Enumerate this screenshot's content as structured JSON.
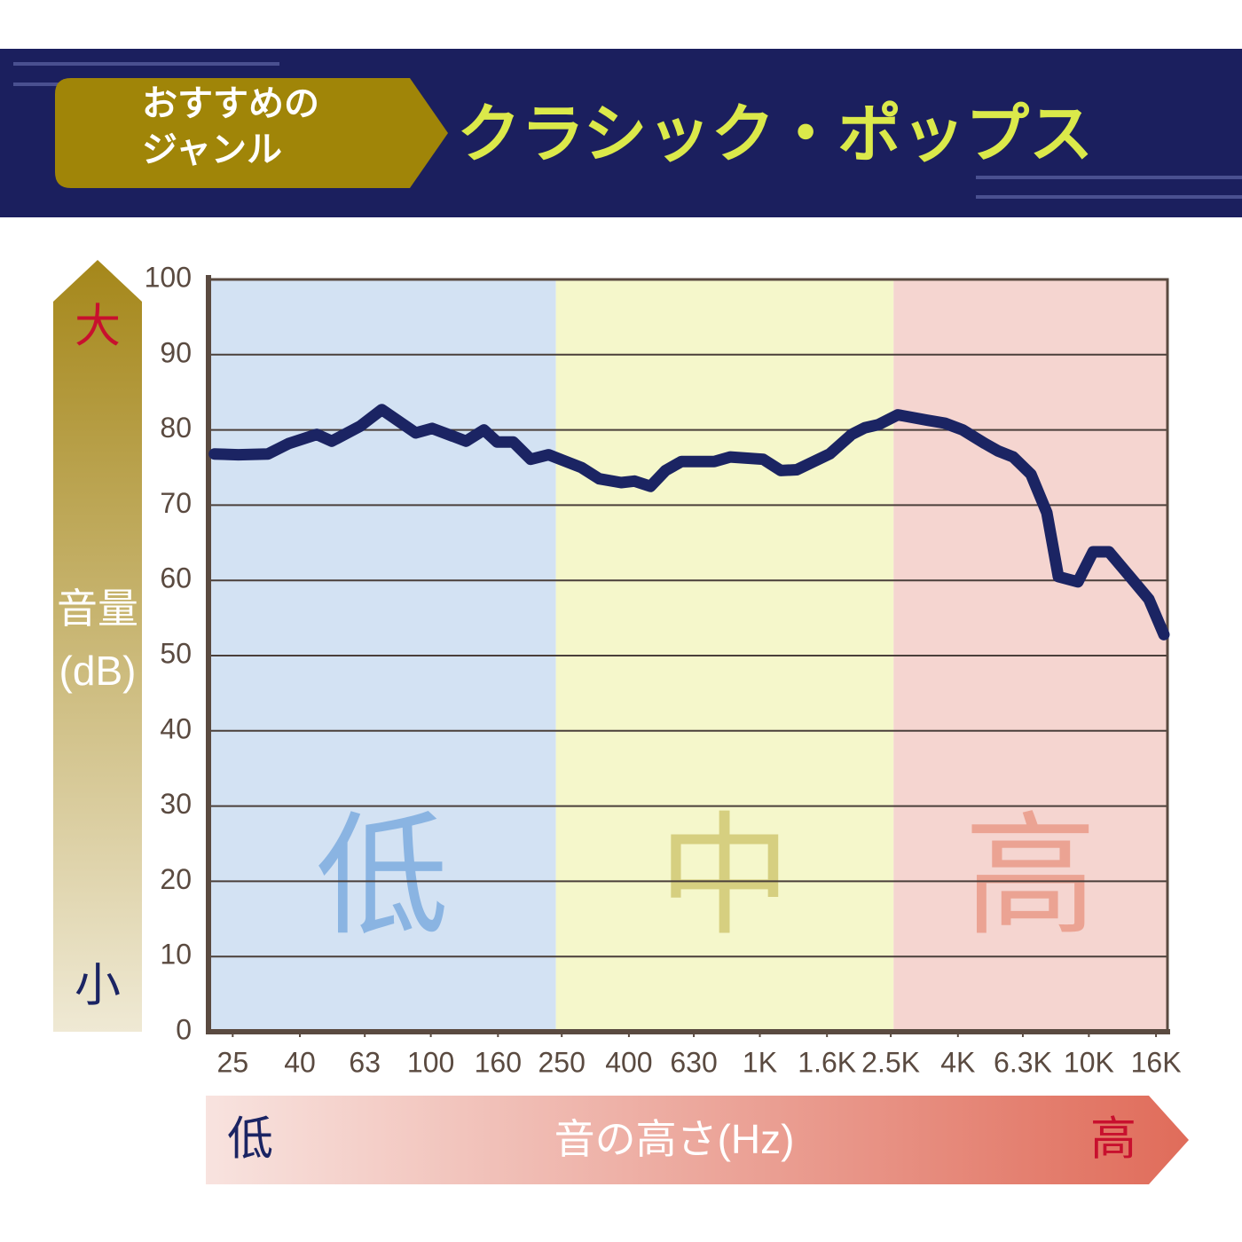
{
  "header": {
    "label_lines": [
      "おすすめの",
      "ジャンル"
    ],
    "genre": "クラシック・ポップス"
  },
  "chart_data": {
    "type": "line",
    "y_label_lines": [
      "音量",
      "(dB)"
    ],
    "y_high": "大",
    "y_low": "小",
    "x_label": "音の高さ(Hz)",
    "x_low": "低",
    "x_high": "高",
    "log_x": true,
    "grid": true,
    "xlim": [
      21.1,
      17337
    ],
    "ylim": [
      0,
      100
    ],
    "xticks": [
      25,
      40,
      63,
      100,
      160,
      250,
      400,
      630,
      {
        "value": 1000,
        "label": "1K"
      },
      {
        "value": 1600,
        "label": "1.6K"
      },
      {
        "value": 2500,
        "label": "2.5K"
      },
      {
        "value": 4000,
        "label": "4K"
      },
      {
        "value": 6300,
        "label": "6.3K"
      },
      {
        "value": 10000,
        "label": "10K"
      },
      {
        "value": 16000,
        "label": "16K"
      }
    ],
    "yticks": [
      0,
      10,
      20,
      30,
      40,
      50,
      60,
      70,
      80,
      90,
      100
    ],
    "band_edges": [
      240,
      2550
    ],
    "bands": [
      {
        "label": "低",
        "color": "#d3e2f3",
        "text_color": "#8ab4e2"
      },
      {
        "label": "中",
        "color": "#f5f7cb",
        "text_color": "#d6cf80"
      },
      {
        "label": "高",
        "color": "#f5d5d0",
        "text_color": "#eba393"
      }
    ],
    "x": [
      22,
      26,
      32,
      37,
      45,
      50,
      61,
      71,
      90,
      101,
      128,
      145,
      159,
      178,
      201,
      228,
      287,
      325,
      379,
      416,
      465,
      517,
      578,
      727,
      813,
      1023,
      1158,
      1295,
      1630,
      1902,
      2088,
      2292,
      2628,
      3224,
      3650,
      4133,
      4828,
      5298,
      5888,
      6668,
      7453,
      8080,
      9263,
      10296,
      11510,
      13445,
      15219,
      16910
    ],
    "series": [
      {
        "color": "#1b2463",
        "values": [
          76.8,
          76.7,
          76.8,
          78.2,
          79.4,
          78.5,
          80.5,
          82.7,
          79.6,
          80.2,
          78.5,
          80.0,
          78.4,
          78.4,
          76.1,
          76.7,
          75.0,
          73.5,
          73.0,
          73.2,
          72.5,
          74.6,
          75.8,
          75.8,
          76.4,
          76.1,
          74.6,
          74.7,
          76.8,
          79.4,
          80.3,
          80.7,
          82.0,
          81.3,
          80.9,
          80.0,
          78.2,
          77.2,
          76.4,
          74.1,
          69.0,
          60.5,
          59.8,
          63.8,
          63.8,
          60.3,
          57.5,
          52.8
        ]
      }
    ]
  }
}
